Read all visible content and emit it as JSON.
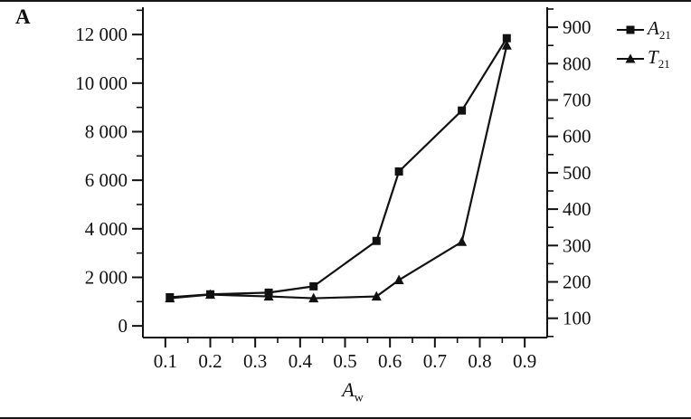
{
  "figure": {
    "panel_label": "A",
    "background": "#ffffff",
    "line_color": "#111111",
    "text_color": "#111111"
  },
  "legend": {
    "position": "top-right-outside",
    "items": [
      {
        "marker": "square",
        "label_main": "A",
        "label_sub": "21"
      },
      {
        "marker": "triangle",
        "label_main": "T",
        "label_sub": "21"
      }
    ]
  },
  "x_axis_title": {
    "main": "A",
    "sub": "w"
  },
  "chart_data": {
    "type": "line",
    "title": "",
    "xlabel": "Aw",
    "ylabel_left": "",
    "ylabel_right": "",
    "grid": false,
    "x": [
      0.11,
      0.2,
      0.33,
      0.43,
      0.57,
      0.62,
      0.76,
      0.86
    ],
    "series": [
      {
        "name": "A21",
        "axis": "left",
        "marker": "square",
        "values": [
          1180,
          1300,
          1370,
          1630,
          3500,
          6360,
          8870,
          11850
        ]
      },
      {
        "name": "T21",
        "axis": "right",
        "marker": "triangle",
        "values": [
          155,
          165,
          160,
          155,
          160,
          205,
          310,
          850
        ]
      }
    ],
    "x_axis": {
      "range": [
        0.05,
        0.95
      ],
      "major_ticks": [
        0.1,
        0.2,
        0.3,
        0.4,
        0.5,
        0.6,
        0.7,
        0.8,
        0.9
      ],
      "tick_labels": [
        "0.1",
        "0.2",
        "0.3",
        "0.4",
        "0.5",
        "0.6",
        "0.7",
        "0.8",
        "0.9"
      ],
      "minor_ticks": [
        0.15,
        0.25,
        0.35,
        0.45,
        0.55,
        0.65,
        0.75,
        0.85
      ]
    },
    "left_axis": {
      "range": [
        -480,
        13050
      ],
      "major_ticks": [
        0,
        2000,
        4000,
        6000,
        8000,
        10000,
        12000
      ],
      "tick_labels": [
        "0",
        "2 000",
        "4 000",
        "6 000",
        "8 000",
        "10 000",
        "12 000"
      ],
      "minor_ticks": [
        1000,
        3000,
        5000,
        7000,
        9000,
        11000,
        13000
      ]
    },
    "right_axis": {
      "range": [
        47,
        950
      ],
      "major_ticks": [
        100,
        200,
        300,
        400,
        500,
        600,
        700,
        800,
        900
      ],
      "tick_labels": [
        "100",
        "200",
        "300",
        "400",
        "500",
        "600",
        "700",
        "800",
        "900"
      ],
      "minor_ticks": [
        50,
        150,
        250,
        350,
        450,
        550,
        650,
        750,
        850,
        950
      ]
    }
  }
}
